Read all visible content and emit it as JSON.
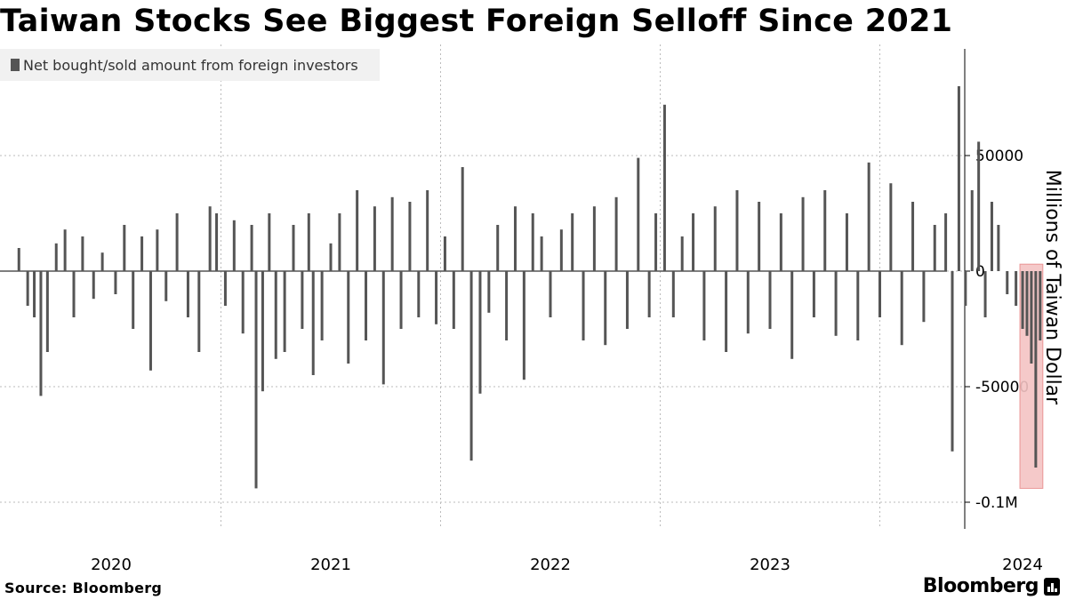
{
  "title": "Taiwan Stocks See Biggest Foreign Selloff Since 2021",
  "legend_label": "Net bought/sold amount from foreign investors",
  "source": "Source: Bloomberg",
  "brand": "Bloomberg",
  "brand_icon": "bloomberg-logo-icon",
  "colors": {
    "bars": "#555555",
    "highlight_fill": "#f4c4c4",
    "highlight_stroke": "#e88a8a",
    "grid": "#bbbbbb"
  },
  "chart_data": {
    "type": "bar",
    "title": "Taiwan Stocks See Biggest Foreign Selloff Since 2021",
    "xlabel": "",
    "ylabel": "Millions of Taiwan Dollar",
    "ylim": [
      -110000,
      95000
    ],
    "yticks": [
      50000,
      0,
      -50000,
      -100000
    ],
    "ytick_labels": [
      "50000",
      "0",
      "-50000",
      "-0.1M"
    ],
    "xticks": [
      2020,
      2021,
      2022,
      2023,
      2024
    ],
    "xtick_labels": [
      "2020",
      "2021",
      "2022",
      "2023",
      "2024"
    ],
    "x_range": [
      2019.5,
      2024.4
    ],
    "grid": true,
    "legend_position": "top-left",
    "series": [
      {
        "name": "Net bought/sold amount from foreign investors",
        "x": [
          2019.58,
          2019.62,
          2019.65,
          2019.68,
          2019.71,
          2019.75,
          2019.79,
          2019.83,
          2019.87,
          2019.92,
          2019.96,
          2020.02,
          2020.06,
          2020.1,
          2020.14,
          2020.18,
          2020.21,
          2020.25,
          2020.3,
          2020.35,
          2020.4,
          2020.45,
          2020.48,
          2020.52,
          2020.56,
          2020.6,
          2020.64,
          2020.66,
          2020.69,
          2020.72,
          2020.75,
          2020.79,
          2020.83,
          2020.87,
          2020.9,
          2020.92,
          2020.96,
          2021.0,
          2021.04,
          2021.08,
          2021.12,
          2021.16,
          2021.2,
          2021.24,
          2021.28,
          2021.32,
          2021.36,
          2021.4,
          2021.44,
          2021.48,
          2021.52,
          2021.56,
          2021.6,
          2021.64,
          2021.68,
          2021.72,
          2021.76,
          2021.8,
          2021.84,
          2021.88,
          2021.92,
          2021.96,
          2022.0,
          2022.05,
          2022.1,
          2022.15,
          2022.2,
          2022.25,
          2022.3,
          2022.35,
          2022.4,
          2022.45,
          2022.48,
          2022.52,
          2022.56,
          2022.6,
          2022.65,
          2022.7,
          2022.75,
          2022.8,
          2022.85,
          2022.9,
          2022.95,
          2023.0,
          2023.05,
          2023.1,
          2023.15,
          2023.2,
          2023.25,
          2023.3,
          2023.35,
          2023.4,
          2023.45,
          2023.5,
          2023.55,
          2023.6,
          2023.65,
          2023.7,
          2023.75,
          2023.8,
          2023.83,
          2023.86,
          2023.89,
          2023.92,
          2023.95,
          2023.98,
          2024.01,
          2024.04,
          2024.08,
          2024.12,
          2024.15,
          2024.17,
          2024.19,
          2024.21,
          2024.23
        ],
        "values": [
          10000,
          -15000,
          -20000,
          -54000,
          -35000,
          12000,
          18000,
          -20000,
          15000,
          -12000,
          8000,
          -10000,
          20000,
          -25000,
          15000,
          -43000,
          18000,
          -13000,
          25000,
          -20000,
          -35000,
          28000,
          25000,
          -15000,
          22000,
          -27000,
          20000,
          -94000,
          -52000,
          25000,
          -38000,
          -35000,
          20000,
          -25000,
          25000,
          -45000,
          -30000,
          12000,
          25000,
          -40000,
          35000,
          -30000,
          28000,
          -49000,
          32000,
          -25000,
          30000,
          -20000,
          35000,
          -23000,
          15000,
          -25000,
          45000,
          -82000,
          -53000,
          -18000,
          20000,
          -30000,
          28000,
          -47000,
          25000,
          15000,
          -20000,
          18000,
          25000,
          -30000,
          28000,
          -32000,
          32000,
          -25000,
          49000,
          -20000,
          25000,
          72000,
          -20000,
          15000,
          25000,
          -30000,
          28000,
          -35000,
          35000,
          -27000,
          30000,
          -25000,
          25000,
          -38000,
          32000,
          -20000,
          35000,
          -28000,
          25000,
          -30000,
          47000,
          -20000,
          38000,
          -32000,
          30000,
          -22000,
          20000,
          25000,
          -78000,
          80000,
          -15000,
          35000,
          56000,
          -20000,
          30000,
          20000,
          -10000,
          -15000,
          -25000,
          -28000,
          -40000,
          -85000,
          -30000
        ]
      }
    ],
    "highlight": {
      "x_range": [
        2024.15,
        2024.23
      ],
      "y_range": [
        -94000,
        3000
      ]
    }
  }
}
